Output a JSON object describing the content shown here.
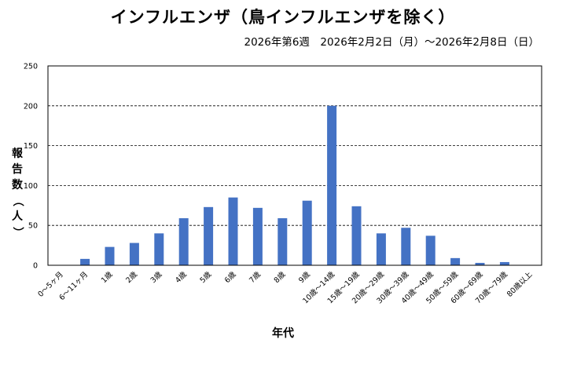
{
  "header": {
    "title": "インフルエンザ（鳥インフルエンザを除く）",
    "subtitle": "2026年第6週　2026年2月2日（月）～2026年2月8日（日）"
  },
  "chart_data": {
    "type": "bar",
    "title": "インフルエンザ（鳥インフルエンザを除く）",
    "subtitle": "2026年第6週　2026年2月2日（月）～2026年2月8日（日）",
    "xlabel": "年代",
    "ylabel": "報告数（人）",
    "ylim": [
      0,
      250
    ],
    "yticks": [
      0,
      50,
      100,
      150,
      200,
      250
    ],
    "grid": true,
    "bar_color": "#4472C4",
    "categories": [
      "0～5ヶ月",
      "6～11ヶ月",
      "1歳",
      "2歳",
      "3歳",
      "4歳",
      "5歳",
      "6歳",
      "7歳",
      "8歳",
      "9歳",
      "10歳～14歳",
      "15歳～19歳",
      "20歳～29歳",
      "30歳～39歳",
      "40歳～49歳",
      "50歳～59歳",
      "60歳～69歳",
      "70歳～79歳",
      "80歳以上"
    ],
    "values": [
      0,
      8,
      23,
      28,
      40,
      59,
      73,
      85,
      72,
      59,
      81,
      200,
      74,
      40,
      47,
      37,
      9,
      3,
      4,
      0
    ]
  }
}
